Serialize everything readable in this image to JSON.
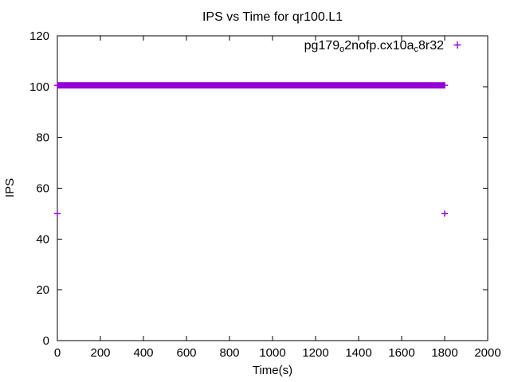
{
  "chart_data": {
    "type": "scatter",
    "title": "IPS vs Time for qr100.L1",
    "xlabel": "Time(s)",
    "ylabel": "IPS",
    "xlim": [
      0,
      2000
    ],
    "ylim": [
      0,
      120
    ],
    "xticks": [
      0,
      200,
      400,
      600,
      800,
      1000,
      1200,
      1400,
      1600,
      1800,
      2000
    ],
    "yticks": [
      0,
      20,
      40,
      60,
      80,
      100,
      120
    ],
    "grid": false,
    "background_color": "#ffffff",
    "axis_color": "#000000",
    "legend": {
      "position": "top-right-inside",
      "entries": [
        {
          "label": "pg179_o2nofp.cx10a_c8r32",
          "label_parts": [
            {
              "text": "pg179",
              "subscript": false
            },
            {
              "text": "o",
              "subscript": true
            },
            {
              "text": "2nofp.cx10a",
              "subscript": false
            },
            {
              "text": "c",
              "subscript": true
            },
            {
              "text": "8r32",
              "subscript": false
            }
          ],
          "marker": "plus",
          "color": "#9400d3"
        }
      ]
    },
    "series": [
      {
        "name": "pg179_o2nofp.cx10a_c8r32",
        "marker": "plus",
        "color": "#9400d3",
        "dense_band": {
          "x_start": 0,
          "x_end": 1805,
          "y_center": 100.5,
          "y_spread": 1,
          "note": "hundreds of overlapping + markers forming a solid bar at roughly 99-101 IPS"
        },
        "outlier_points": [
          {
            "x": 0,
            "y": 50
          },
          {
            "x": 1800,
            "y": 50
          }
        ]
      }
    ]
  }
}
